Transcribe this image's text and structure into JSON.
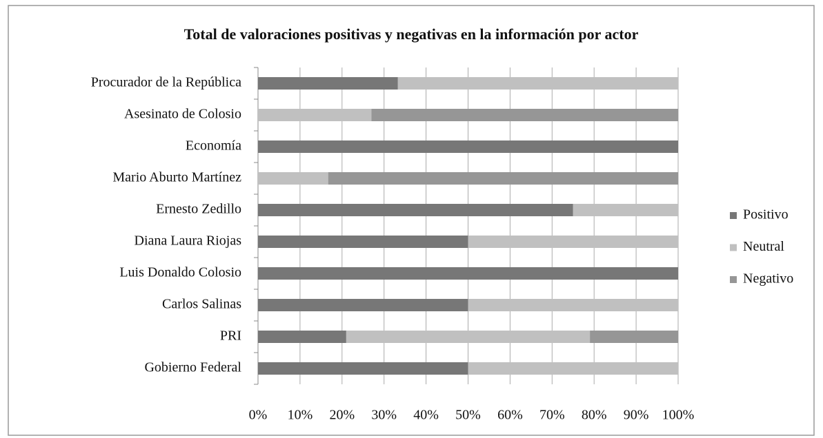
{
  "chart_data": {
    "type": "stacked-bar-horizontal",
    "title": "Total de valoraciones positivas y negativas en la información por actor",
    "categories": [
      "Procurador de la República",
      "Asesinato de Colosio",
      "Economía",
      "Mario Aburto Martínez",
      "Ernesto Zedillo",
      "Diana Laura Riojas",
      "Luis Donaldo Colosio",
      "Carlos Salinas",
      "PRI",
      "Gobierno Federal"
    ],
    "series": [
      {
        "name": "Positivo",
        "color": "#777777",
        "values": [
          33.3,
          0,
          100,
          0,
          75,
          50,
          100,
          50,
          21,
          50
        ]
      },
      {
        "name": "Neutral",
        "color": "#c0c0c0",
        "values": [
          66.7,
          27,
          0,
          16.7,
          25,
          50,
          0,
          50,
          58,
          50
        ]
      },
      {
        "name": "Negativo",
        "color": "#969696",
        "values": [
          0,
          73,
          0,
          83.3,
          0,
          0,
          0,
          0,
          21,
          0
        ]
      }
    ],
    "xlim": [
      0,
      100
    ],
    "xticks": [
      {
        "value": 0,
        "label": "0%"
      },
      {
        "value": 10,
        "label": "10%"
      },
      {
        "value": 20,
        "label": "20%"
      },
      {
        "value": 30,
        "label": "30%"
      },
      {
        "value": 40,
        "label": "40%"
      },
      {
        "value": 50,
        "label": "50%"
      },
      {
        "value": 60,
        "label": "60%"
      },
      {
        "value": 70,
        "label": "70%"
      },
      {
        "value": 80,
        "label": "80%"
      },
      {
        "value": 90,
        "label": "90%"
      },
      {
        "value": 100,
        "label": "100%"
      }
    ],
    "grid": true,
    "legend": "right"
  }
}
